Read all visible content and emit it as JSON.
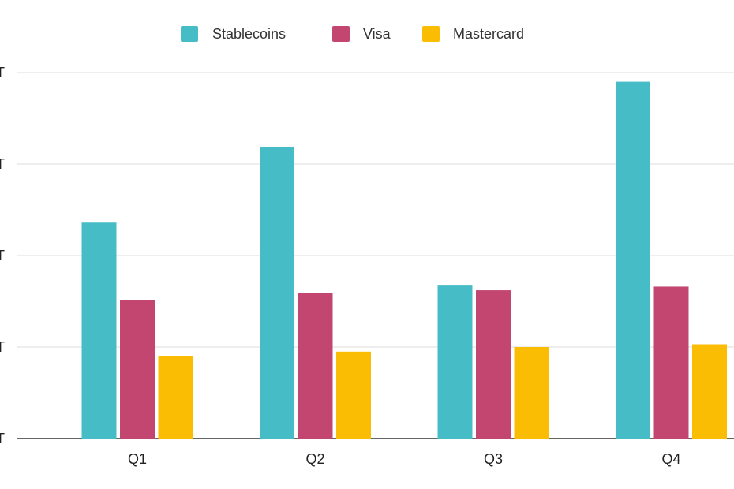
{
  "chart_data": {
    "type": "bar",
    "categories": [
      "Q1",
      "Q2",
      "Q3",
      "Q4"
    ],
    "series": [
      {
        "name": "Stablecoins",
        "color": "#46BDC6",
        "values": [
          2.36,
          3.19,
          1.68,
          3.9
        ]
      },
      {
        "name": "Visa",
        "color": "#C2466F",
        "values": [
          1.51,
          1.59,
          1.62,
          1.66
        ]
      },
      {
        "name": "Mastercard",
        "color": "#FBBC04",
        "values": [
          0.9,
          0.95,
          1.0,
          1.03
        ]
      }
    ],
    "y_tick_labels": [
      "T",
      "T",
      "T",
      "T",
      "T"
    ],
    "ylim": [
      0,
      4
    ],
    "grid": true,
    "legend_position": "top"
  }
}
